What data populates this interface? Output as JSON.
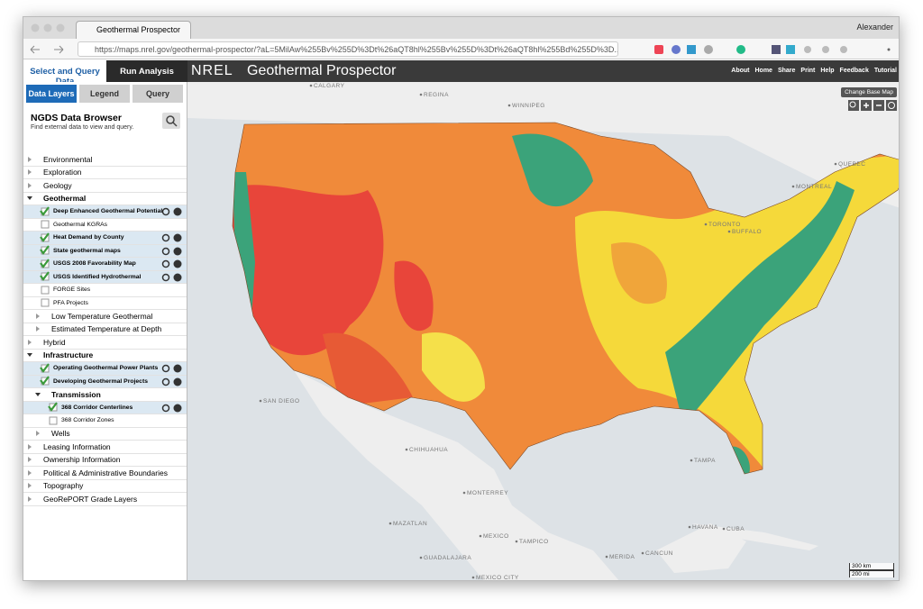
{
  "browser": {
    "tab_title": "Geothermal Prospector",
    "user": "Alexander",
    "url": "https://maps.nrel.gov/geothermal-prospector/?aL=5MilAw%255Bv%255D%3Dt%26aQT8hl%255Bv%255D%3Dt%26aQT8hl%255Bd%255D%3D..."
  },
  "app": {
    "tabs": [
      "Select and Query Data",
      "Run Analysis"
    ],
    "logo": "NREL",
    "title": "Geothermal Prospector",
    "nav": [
      "About",
      "Home",
      "Share",
      "Print",
      "Help",
      "Feedback",
      "Tutorial"
    ]
  },
  "sidebar": {
    "subtabs": [
      "Data Layers",
      "Legend",
      "Query"
    ],
    "active_subtab": 0,
    "browser_title": "NGDS Data Browser",
    "browser_subtitle": "Find external data to view and query.",
    "items": [
      {
        "label": "Environmental",
        "level": 0,
        "kind": "folder",
        "expanded": false
      },
      {
        "label": "Exploration",
        "level": 0,
        "kind": "folder",
        "expanded": false
      },
      {
        "label": "Geology",
        "level": 0,
        "kind": "folder",
        "expanded": false
      },
      {
        "label": "Geothermal",
        "level": 0,
        "kind": "folder",
        "expanded": true
      },
      {
        "label": "Deep Enhanced Geothermal Potential",
        "level": 1,
        "kind": "layer",
        "checked": true
      },
      {
        "label": "Geothermal KGRAs",
        "level": 1,
        "kind": "layer",
        "checked": false
      },
      {
        "label": "Heat Demand by County",
        "level": 1,
        "kind": "layer",
        "checked": true
      },
      {
        "label": "State geothermal maps",
        "level": 1,
        "kind": "layer",
        "checked": true
      },
      {
        "label": "USGS 2008 Favorability Map",
        "level": 1,
        "kind": "layer",
        "checked": true
      },
      {
        "label": "USGS Identified Hydrothermal",
        "level": 1,
        "kind": "layer",
        "checked": true
      },
      {
        "label": "FORGE Sites",
        "level": 1,
        "kind": "layer",
        "checked": false
      },
      {
        "label": "PFA Projects",
        "level": 1,
        "kind": "layer",
        "checked": false
      },
      {
        "label": "Low Temperature Geothermal",
        "level": 1,
        "kind": "folder",
        "expanded": false
      },
      {
        "label": "Estimated Temperature at Depth",
        "level": 1,
        "kind": "folder",
        "expanded": false
      },
      {
        "label": "Hybrid",
        "level": 0,
        "kind": "folder",
        "expanded": false
      },
      {
        "label": "Infrastructure",
        "level": 0,
        "kind": "folder",
        "expanded": true
      },
      {
        "label": "Operating Geothermal Power Plants",
        "level": 1,
        "kind": "layer",
        "checked": true
      },
      {
        "label": "Developing Geothermal Projects",
        "level": 1,
        "kind": "layer",
        "checked": true
      },
      {
        "label": "Transmission",
        "level": 1,
        "kind": "folder",
        "expanded": true
      },
      {
        "label": "368 Corridor Centerlines",
        "level": 2,
        "kind": "layer",
        "checked": true
      },
      {
        "label": "368 Corridor Zones",
        "level": 2,
        "kind": "layer",
        "checked": false
      },
      {
        "label": "Wells",
        "level": 1,
        "kind": "folder",
        "expanded": false
      },
      {
        "label": "Leasing Information",
        "level": 0,
        "kind": "folder",
        "expanded": false
      },
      {
        "label": "Ownership Information",
        "level": 0,
        "kind": "folder",
        "expanded": false
      },
      {
        "label": "Political & Administrative Boundaries",
        "level": 0,
        "kind": "folder",
        "expanded": false
      },
      {
        "label": "Topography",
        "level": 0,
        "kind": "folder",
        "expanded": false
      },
      {
        "label": "GeoRePORT Grade Layers",
        "level": 0,
        "kind": "folder",
        "expanded": false
      }
    ]
  },
  "map": {
    "base_map_button": "Change Base Map",
    "labels": [
      "CALGARY",
      "REGINA",
      "WINNIPEG",
      "QUEBEC",
      "MONTREAL",
      "TORONTO",
      "BUFFALO",
      "SAN DIEGO",
      "CHIHUAHUA",
      "MONTERREY",
      "MAZATLAN",
      "MEXICO",
      "TAMPICO",
      "GUADALAJARA",
      "MEXICO CITY",
      "HAVANA",
      "CUBA",
      "CANCUN",
      "MERIDA",
      "TAMPA"
    ],
    "scale": [
      "300 km",
      "200 mi"
    ]
  }
}
